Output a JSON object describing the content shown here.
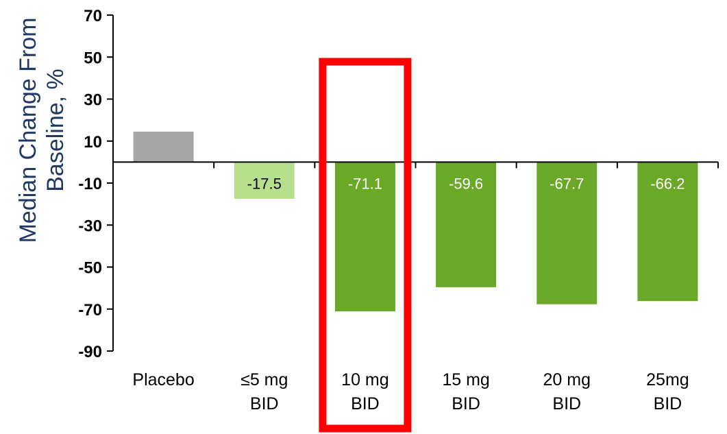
{
  "chart_data": {
    "type": "bar",
    "ylabel": [
      "Median Change From",
      "Baseline, %"
    ],
    "ylim": [
      -90,
      70
    ],
    "yticks": [
      70,
      50,
      30,
      10,
      -10,
      -30,
      -50,
      -70,
      -90
    ],
    "categories": [
      [
        "Placebo"
      ],
      [
        "≤5 mg",
        "BID"
      ],
      [
        "10 mg",
        "BID"
      ],
      [
        "15 mg",
        "BID"
      ],
      [
        "20 mg",
        "BID"
      ],
      [
        "25mg",
        "BID"
      ]
    ],
    "values": [
      14.5,
      -17.5,
      -71.1,
      -59.6,
      -67.7,
      -66.2
    ],
    "data_labels": [
      "",
      "-17.5",
      "-71.1",
      "-59.6",
      "-67.7",
      "-66.2"
    ],
    "bar_colors": [
      "#a6a6a6",
      "#b8e08c",
      "#6aa928",
      "#6aa928",
      "#6aa928",
      "#6aa928"
    ],
    "label_colors": [
      "#000000",
      "#000000",
      "#ffffff",
      "#ffffff",
      "#ffffff",
      "#ffffff"
    ],
    "highlight_index": 2,
    "highlight_color": "#ff0000",
    "grid": false,
    "legend": "none"
  }
}
